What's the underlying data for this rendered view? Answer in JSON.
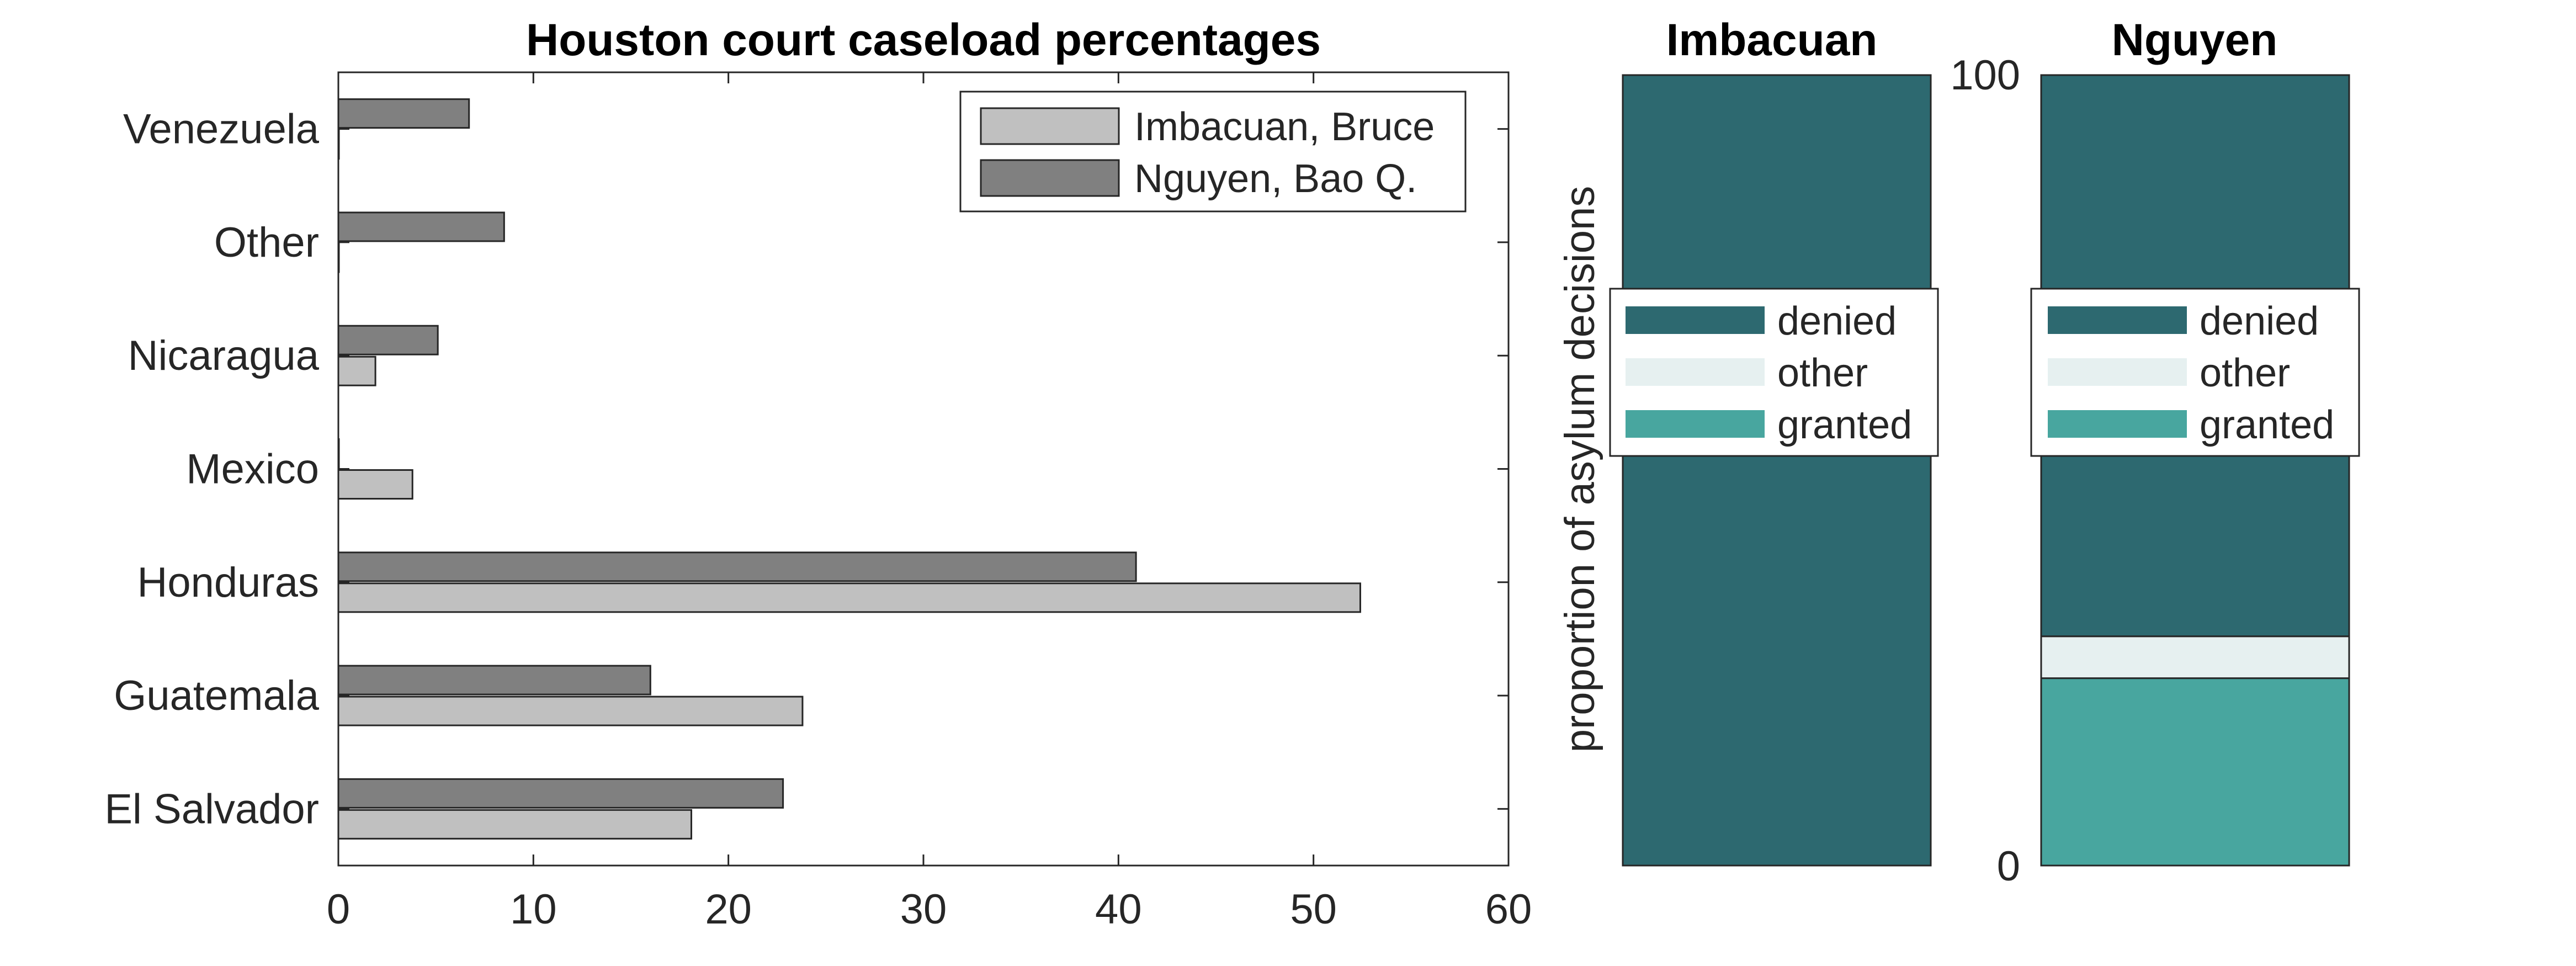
{
  "chart_data": [
    {
      "type": "bar",
      "orientation": "horizontal",
      "title": "Houston court caseload percentages",
      "xlabel": "",
      "ylabel": "",
      "categories": [
        "El Salvador",
        "Guatemala",
        "Honduras",
        "Mexico",
        "Nicaragua",
        "Other",
        "Venezuela"
      ],
      "series": [
        {
          "name": "Imbacuan, Bruce",
          "values": [
            18.1,
            23.8,
            52.4,
            3.8,
            1.9,
            0,
            0
          ],
          "color": "#c0c0c0"
        },
        {
          "name": "Nguyen, Bao Q.",
          "values": [
            22.8,
            16.0,
            40.9,
            0,
            5.1,
            8.5,
            6.7
          ],
          "color": "#808080"
        }
      ],
      "xlim": [
        0,
        60
      ],
      "xticks": [
        "0",
        "10",
        "20",
        "30",
        "40",
        "50",
        "60"
      ],
      "grid": false,
      "legend_position": "top-right"
    },
    {
      "type": "bar",
      "stacked": true,
      "title": "Imbacuan",
      "ylabel": "proportion of asylum decisions",
      "ylim": [
        0,
        100
      ],
      "segments": [
        {
          "name": "granted",
          "value": 0,
          "color": "#48a69f"
        },
        {
          "name": "other",
          "value": 0,
          "color": "#e6f0f0"
        },
        {
          "name": "denied",
          "value": 100,
          "color": "#2d6970"
        }
      ],
      "legend": [
        "denied",
        "other",
        "granted"
      ],
      "legend_position": "center"
    },
    {
      "type": "bar",
      "stacked": true,
      "title": "Nguyen",
      "ylim": [
        0,
        100
      ],
      "yticks": [
        "0",
        "100"
      ],
      "segments": [
        {
          "name": "granted",
          "value": 23.7,
          "color": "#48a69f"
        },
        {
          "name": "other",
          "value": 5.3,
          "color": "#e6f0f0"
        },
        {
          "name": "denied",
          "value": 71.0,
          "color": "#2d6970"
        }
      ],
      "legend": [
        "denied",
        "other",
        "granted"
      ],
      "legend_position": "center"
    }
  ]
}
